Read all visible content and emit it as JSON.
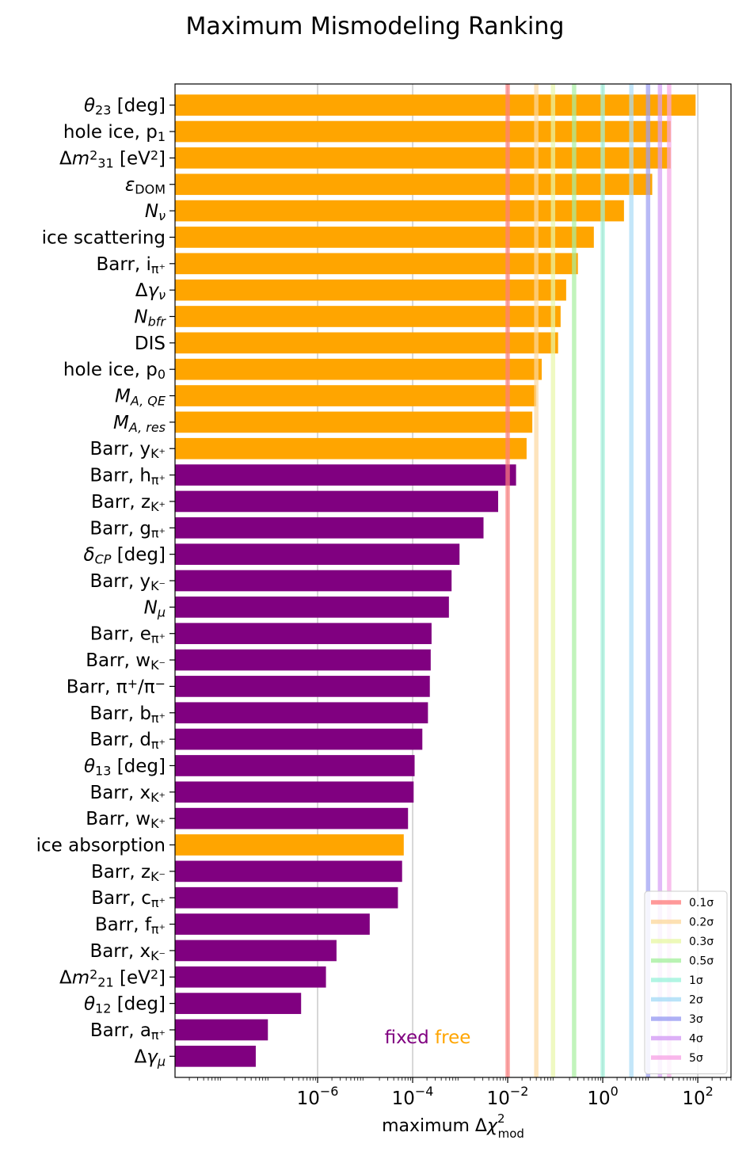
{
  "chart_data": {
    "type": "bar",
    "orientation": "horizontal",
    "title": "Maximum Mismodeling Ranking",
    "xlabel": "maximum Δχ²_mod",
    "xscale": "log",
    "xlim": [
      1e-09,
      500
    ],
    "x_ticks": [
      {
        "value": 1e-06,
        "base": "10",
        "exp": "−6"
      },
      {
        "value": 0.0001,
        "base": "10",
        "exp": "−4"
      },
      {
        "value": 0.01,
        "base": "10",
        "exp": "−2"
      },
      {
        "value": 1,
        "base": "10",
        "exp": "0"
      },
      {
        "value": 100,
        "base": "10",
        "exp": "2"
      }
    ],
    "grid": "vertical gridlines at major ticks",
    "annotation": {
      "fixed_label": "fixed",
      "free_label": "free"
    },
    "status_colors": {
      "free": "#ffa500",
      "fixed": "#800080"
    },
    "bars": [
      {
        "label": [
          {
            "t": "θ",
            "i": true
          },
          {
            "t": "23",
            "s": "sub"
          },
          {
            "t": " [deg]"
          }
        ],
        "value": 90,
        "status": "free"
      },
      {
        "label": [
          {
            "t": "hole ice, p"
          },
          {
            "t": "1",
            "s": "sub"
          }
        ],
        "value": 27,
        "status": "free"
      },
      {
        "label": [
          {
            "t": "Δ"
          },
          {
            "t": "m",
            "i": true
          },
          {
            "t": "2",
            "s": "sup"
          },
          {
            "t": "31",
            "s": "sub"
          },
          {
            "t": " [eV"
          },
          {
            "t": "2",
            "s": "sup"
          },
          {
            "t": "]"
          }
        ],
        "value": 27,
        "status": "free"
      },
      {
        "label": [
          {
            "t": "ε",
            "i": true
          },
          {
            "t": "DOM",
            "s": "sub"
          }
        ],
        "value": 11,
        "status": "free"
      },
      {
        "label": [
          {
            "t": "N",
            "i": true
          },
          {
            "t": "ν",
            "s": "sub",
            "i": true
          }
        ],
        "value": 2.8,
        "status": "free"
      },
      {
        "label": [
          {
            "t": "ice scattering"
          }
        ],
        "value": 0.65,
        "status": "free"
      },
      {
        "label": [
          {
            "t": "Barr, i"
          },
          {
            "t": "π⁺",
            "s": "sub"
          }
        ],
        "value": 0.3,
        "status": "free"
      },
      {
        "label": [
          {
            "t": "Δ"
          },
          {
            "t": "γ",
            "i": true
          },
          {
            "t": "ν",
            "s": "sub",
            "i": true
          }
        ],
        "value": 0.17,
        "status": "free"
      },
      {
        "label": [
          {
            "t": "N",
            "i": true
          },
          {
            "t": "bfr",
            "s": "sub",
            "i": true
          }
        ],
        "value": 0.13,
        "status": "free"
      },
      {
        "label": [
          {
            "t": "DIS"
          }
        ],
        "value": 0.115,
        "status": "free"
      },
      {
        "label": [
          {
            "t": "hole ice, p"
          },
          {
            "t": "0",
            "s": "sub"
          }
        ],
        "value": 0.052,
        "status": "free"
      },
      {
        "label": [
          {
            "t": "M",
            "i": true
          },
          {
            "t": "A, QE",
            "s": "sub",
            "i": true
          }
        ],
        "value": 0.04,
        "status": "free"
      },
      {
        "label": [
          {
            "t": "M",
            "i": true
          },
          {
            "t": "A, res",
            "s": "sub",
            "i": true
          }
        ],
        "value": 0.033,
        "status": "free"
      },
      {
        "label": [
          {
            "t": "Barr, y"
          },
          {
            "t": "K⁺",
            "s": "sub"
          }
        ],
        "value": 0.025,
        "status": "free"
      },
      {
        "label": [
          {
            "t": "Barr, h"
          },
          {
            "t": "π⁺",
            "s": "sub"
          }
        ],
        "value": 0.015,
        "status": "fixed"
      },
      {
        "label": [
          {
            "t": "Barr, z"
          },
          {
            "t": "K⁺",
            "s": "sub"
          }
        ],
        "value": 0.0063,
        "status": "fixed"
      },
      {
        "label": [
          {
            "t": "Barr, g"
          },
          {
            "t": "π⁺",
            "s": "sub"
          }
        ],
        "value": 0.0031,
        "status": "fixed"
      },
      {
        "label": [
          {
            "t": "δ",
            "i": true
          },
          {
            "t": "CP",
            "s": "sub",
            "i": true
          },
          {
            "t": " [deg]"
          }
        ],
        "value": 0.00097,
        "status": "fixed"
      },
      {
        "label": [
          {
            "t": "Barr, y"
          },
          {
            "t": "K⁻",
            "s": "sub"
          }
        ],
        "value": 0.00066,
        "status": "fixed"
      },
      {
        "label": [
          {
            "t": "N",
            "i": true
          },
          {
            "t": "μ",
            "s": "sub",
            "i": true
          }
        ],
        "value": 0.00058,
        "status": "fixed"
      },
      {
        "label": [
          {
            "t": "Barr, e"
          },
          {
            "t": "π⁺",
            "s": "sub"
          }
        ],
        "value": 0.00025,
        "status": "fixed"
      },
      {
        "label": [
          {
            "t": "Barr, w"
          },
          {
            "t": "K⁻",
            "s": "sub"
          }
        ],
        "value": 0.00024,
        "status": "fixed"
      },
      {
        "label": [
          {
            "t": "Barr, π"
          },
          {
            "t": "+",
            "s": "sup"
          },
          {
            "t": "/π"
          },
          {
            "t": "−",
            "s": "sup"
          }
        ],
        "value": 0.00023,
        "status": "fixed"
      },
      {
        "label": [
          {
            "t": "Barr, b"
          },
          {
            "t": "π⁺",
            "s": "sub"
          }
        ],
        "value": 0.00021,
        "status": "fixed"
      },
      {
        "label": [
          {
            "t": "Barr, d"
          },
          {
            "t": "π⁺",
            "s": "sub"
          }
        ],
        "value": 0.00016,
        "status": "fixed"
      },
      {
        "label": [
          {
            "t": "θ",
            "i": true
          },
          {
            "t": "13",
            "s": "sub"
          },
          {
            "t": " [deg]"
          }
        ],
        "value": 0.00011,
        "status": "fixed"
      },
      {
        "label": [
          {
            "t": "Barr, x"
          },
          {
            "t": "K⁺",
            "s": "sub"
          }
        ],
        "value": 0.000105,
        "status": "fixed"
      },
      {
        "label": [
          {
            "t": "Barr, w"
          },
          {
            "t": "K⁺",
            "s": "sub"
          }
        ],
        "value": 8e-05,
        "status": "fixed"
      },
      {
        "label": [
          {
            "t": "ice absorption"
          }
        ],
        "value": 6.5e-05,
        "status": "free"
      },
      {
        "label": [
          {
            "t": "Barr, z"
          },
          {
            "t": "K⁻",
            "s": "sub"
          }
        ],
        "value": 6e-05,
        "status": "fixed"
      },
      {
        "label": [
          {
            "t": "Barr, c"
          },
          {
            "t": "π⁺",
            "s": "sub"
          }
        ],
        "value": 4.9e-05,
        "status": "fixed"
      },
      {
        "label": [
          {
            "t": "Barr, f"
          },
          {
            "t": "π⁺",
            "s": "sub"
          }
        ],
        "value": 1.25e-05,
        "status": "fixed"
      },
      {
        "label": [
          {
            "t": "Barr, x"
          },
          {
            "t": "K⁻",
            "s": "sub"
          }
        ],
        "value": 2.5e-06,
        "status": "fixed"
      },
      {
        "label": [
          {
            "t": "Δ"
          },
          {
            "t": "m",
            "i": true
          },
          {
            "t": "2",
            "s": "sup"
          },
          {
            "t": "21",
            "s": "sub"
          },
          {
            "t": " [eV"
          },
          {
            "t": "2",
            "s": "sup"
          },
          {
            "t": "]"
          }
        ],
        "value": 1.5e-06,
        "status": "fixed"
      },
      {
        "label": [
          {
            "t": "θ",
            "i": true
          },
          {
            "t": "12",
            "s": "sub"
          },
          {
            "t": " [deg]"
          }
        ],
        "value": 4.5e-07,
        "status": "fixed"
      },
      {
        "label": [
          {
            "t": "Barr, a"
          },
          {
            "t": "π⁺",
            "s": "sub"
          }
        ],
        "value": 9e-08,
        "status": "fixed"
      },
      {
        "label": [
          {
            "t": "Δ"
          },
          {
            "t": "γ",
            "i": true
          },
          {
            "t": "μ",
            "s": "sub",
            "i": true
          }
        ],
        "value": 5e-08,
        "status": "fixed"
      }
    ],
    "sigma_lines": [
      {
        "label": "0.1σ",
        "value": 0.01,
        "color": "#ff7f7f"
      },
      {
        "label": "0.2σ",
        "value": 0.04,
        "color": "#fcd9a0"
      },
      {
        "label": "0.3σ",
        "value": 0.09,
        "color": "#e8f7a8"
      },
      {
        "label": "0.5σ",
        "value": 0.25,
        "color": "#a8f0a0"
      },
      {
        "label": "1σ",
        "value": 1,
        "color": "#9ff2dc"
      },
      {
        "label": "2σ",
        "value": 4,
        "color": "#a9dcf6"
      },
      {
        "label": "3σ",
        "value": 9,
        "color": "#9a9cf2"
      },
      {
        "label": "4σ",
        "value": 16,
        "color": "#d49cf5"
      },
      {
        "label": "5σ",
        "value": 25,
        "color": "#f7a5e6"
      }
    ],
    "legend_placement": "lower-right"
  }
}
